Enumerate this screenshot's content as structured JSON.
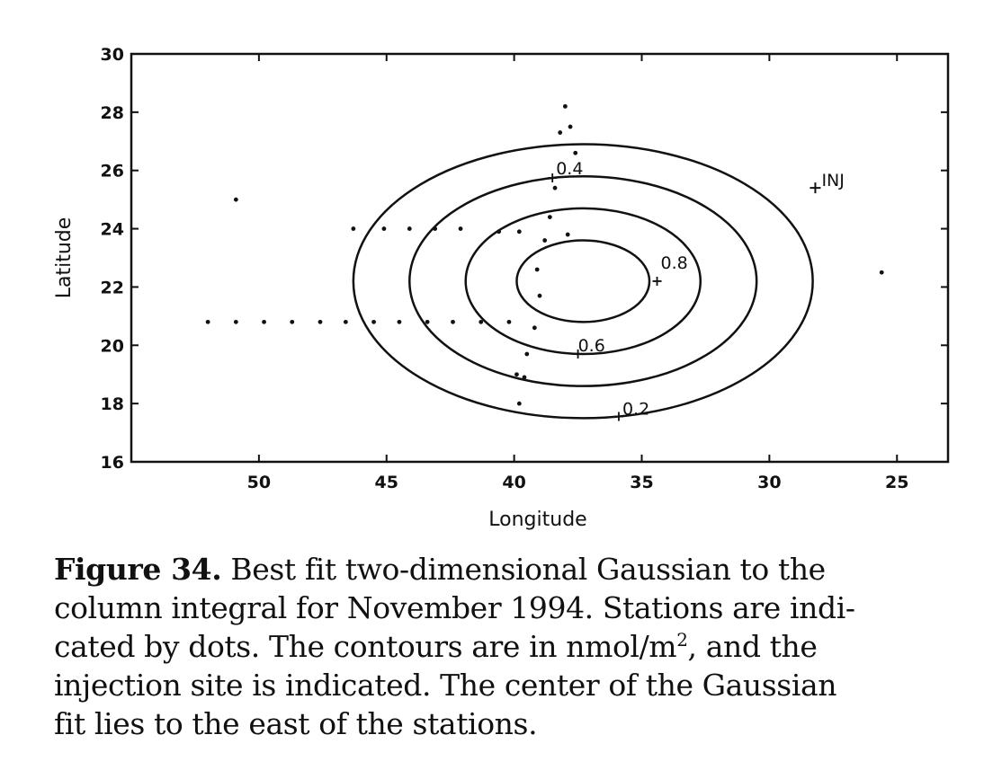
{
  "chart_data": {
    "type": "scatter",
    "xlabel": "Longitude",
    "ylabel": "Latitude",
    "xlim": [
      55,
      23
    ],
    "ylim": [
      16,
      30
    ],
    "x_ticks": [
      50,
      45,
      40,
      35,
      30,
      25
    ],
    "y_ticks": [
      16,
      18,
      20,
      22,
      24,
      26,
      28,
      30
    ],
    "grid": false,
    "gaussian_fit": {
      "center_lon": 37.3,
      "center_lat": 22.2,
      "contours": [
        {
          "level": "0.2",
          "rx_deg": 9.0,
          "ry_deg": 4.7
        },
        {
          "level": "0.4",
          "rx_deg": 6.8,
          "ry_deg": 3.6
        },
        {
          "level": "0.6",
          "rx_deg": 4.6,
          "ry_deg": 2.5
        },
        {
          "level": "0.8",
          "rx_deg": 2.6,
          "ry_deg": 1.4
        }
      ]
    },
    "stations": [
      {
        "lon": 52.0,
        "lat": 20.8
      },
      {
        "lon": 50.9,
        "lat": 20.8
      },
      {
        "lon": 49.8,
        "lat": 20.8
      },
      {
        "lon": 48.7,
        "lat": 20.8
      },
      {
        "lon": 47.6,
        "lat": 20.8
      },
      {
        "lon": 46.6,
        "lat": 20.8
      },
      {
        "lon": 45.5,
        "lat": 20.8
      },
      {
        "lon": 44.5,
        "lat": 20.8
      },
      {
        "lon": 43.4,
        "lat": 20.8
      },
      {
        "lon": 42.4,
        "lat": 20.8
      },
      {
        "lon": 41.3,
        "lat": 20.8
      },
      {
        "lon": 40.2,
        "lat": 20.8
      },
      {
        "lon": 39.2,
        "lat": 20.6
      },
      {
        "lon": 46.3,
        "lat": 24.0
      },
      {
        "lon": 45.1,
        "lat": 24.0
      },
      {
        "lon": 44.1,
        "lat": 24.0
      },
      {
        "lon": 43.1,
        "lat": 24.0
      },
      {
        "lon": 42.1,
        "lat": 24.0
      },
      {
        "lon": 40.6,
        "lat": 23.9
      },
      {
        "lon": 39.8,
        "lat": 23.9
      },
      {
        "lon": 38.8,
        "lat": 23.6
      },
      {
        "lon": 37.9,
        "lat": 23.8
      },
      {
        "lon": 38.6,
        "lat": 24.4
      },
      {
        "lon": 38.0,
        "lat": 28.2
      },
      {
        "lon": 37.8,
        "lat": 27.5
      },
      {
        "lon": 38.2,
        "lat": 27.3
      },
      {
        "lon": 37.6,
        "lat": 26.6
      },
      {
        "lon": 38.4,
        "lat": 25.4
      },
      {
        "lon": 50.9,
        "lat": 25.0
      },
      {
        "lon": 25.6,
        "lat": 22.5
      },
      {
        "lon": 39.1,
        "lat": 22.6
      },
      {
        "lon": 39.0,
        "lat": 21.7
      },
      {
        "lon": 39.5,
        "lat": 19.7
      },
      {
        "lon": 39.9,
        "lat": 19.0
      },
      {
        "lon": 39.6,
        "lat": 18.9
      },
      {
        "lon": 39.8,
        "lat": 18.0
      }
    ],
    "injection_site": {
      "lon": 28.2,
      "lat": 25.4,
      "label": "INJ"
    }
  },
  "caption": {
    "figure_label": "Figure 34.",
    "line1": " Best fit two-dimensional Gaussian to the",
    "line2": "column integral for November 1994. Stations are indi-",
    "line3a": "cated by dots. The contours are in nmol/m",
    "line3sup": "2",
    "line3b": ", and the",
    "line4": "injection site is indicated. The center of the Gaussian",
    "line5": "fit lies to the east of the stations."
  }
}
